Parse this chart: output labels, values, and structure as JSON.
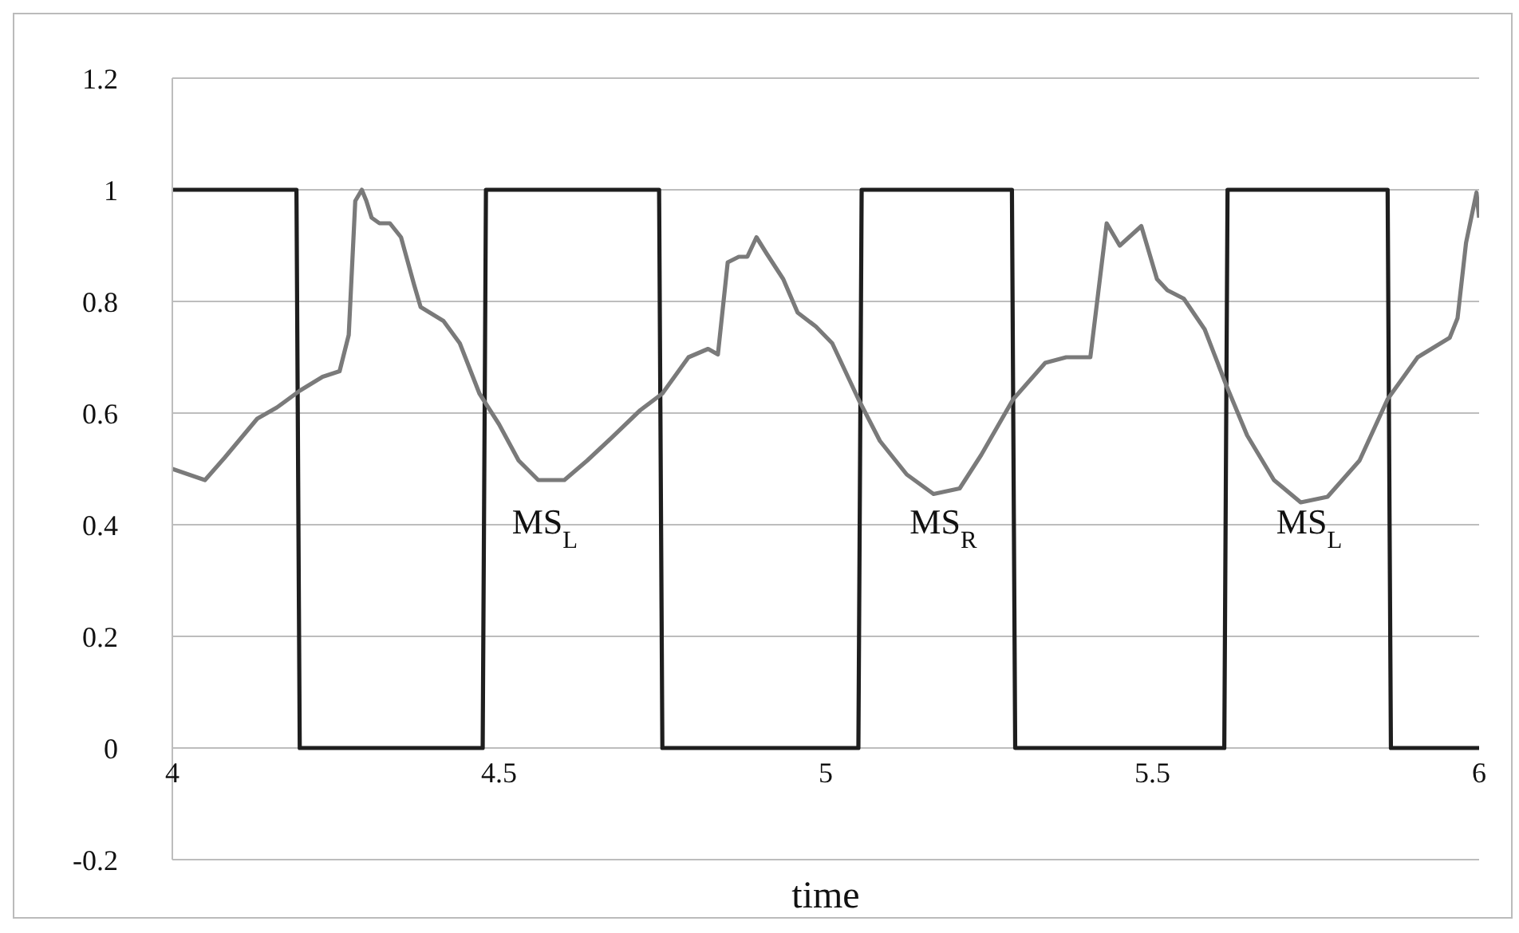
{
  "chart_data": {
    "type": "line",
    "xlabel": "time",
    "xlim": [
      4,
      6
    ],
    "xticks": [
      4,
      4.5,
      5,
      5.5,
      6
    ],
    "ylim": [
      -0.2,
      1.2
    ],
    "yticks": [
      -0.2,
      0,
      0.2,
      0.4,
      0.6,
      0.8,
      1,
      1.2
    ],
    "grid": "y",
    "marker": "none",
    "line_style": "solid",
    "series": [
      {
        "color": "#1e1e1e",
        "x": [
          4,
          4.19,
          4.195,
          4.475,
          4.48,
          4.745,
          4.75,
          5.05,
          5.055,
          5.285,
          5.29,
          5.61,
          5.615,
          5.86,
          5.865,
          6
        ],
        "values": [
          1,
          1,
          0,
          0,
          1,
          1,
          0,
          0,
          1,
          1,
          0,
          0,
          1,
          1,
          0,
          0
        ]
      },
      {
        "color": "#7a7a7a",
        "x": [
          4,
          4.05,
          4.08,
          4.13,
          4.16,
          4.195,
          4.23,
          4.256,
          4.27,
          4.28,
          4.29,
          4.297,
          4.305,
          4.317,
          4.333,
          4.35,
          4.37,
          4.38,
          4.415,
          4.44,
          4.47,
          4.5,
          4.53,
          4.56,
          4.6,
          4.635,
          4.667,
          4.716,
          4.75,
          4.79,
          4.82,
          4.835,
          4.85,
          4.867,
          4.88,
          4.894,
          4.91,
          4.935,
          4.957,
          4.985,
          5.01,
          5.05,
          5.083,
          5.124,
          5.165,
          5.205,
          5.238,
          5.287,
          5.336,
          5.368,
          5.405,
          5.417,
          5.43,
          5.45,
          5.483,
          5.507,
          5.523,
          5.548,
          5.58,
          5.613,
          5.645,
          5.686,
          5.727,
          5.768,
          5.817,
          5.86,
          5.906,
          5.955,
          5.967,
          5.98,
          5.996,
          6
        ],
        "values": [
          0.5,
          0.48,
          0.52,
          0.59,
          0.61,
          0.64,
          0.665,
          0.675,
          0.74,
          0.98,
          1,
          0.98,
          0.95,
          0.94,
          0.94,
          0.915,
          0.83,
          0.79,
          0.765,
          0.725,
          0.635,
          0.58,
          0.515,
          0.48,
          0.48,
          0.515,
          0.55,
          0.605,
          0.635,
          0.7,
          0.715,
          0.705,
          0.87,
          0.88,
          0.88,
          0.915,
          0.885,
          0.84,
          0.78,
          0.755,
          0.725,
          0.625,
          0.55,
          0.49,
          0.455,
          0.465,
          0.525,
          0.625,
          0.69,
          0.7,
          0.7,
          0.815,
          0.94,
          0.9,
          0.935,
          0.84,
          0.82,
          0.805,
          0.75,
          0.65,
          0.56,
          0.48,
          0.44,
          0.45,
          0.515,
          0.625,
          0.7,
          0.735,
          0.77,
          0.905,
          0.995,
          0.95
        ]
      }
    ],
    "annotations": [
      "MS$_{L}$",
      "MS$_{R}$",
      "MS$_{L}$"
    ]
  }
}
